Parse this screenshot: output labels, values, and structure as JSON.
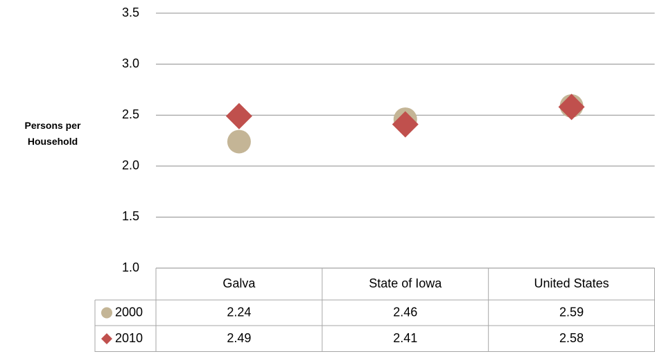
{
  "chart_data": {
    "type": "line",
    "markers_only": true,
    "y_label": "Persons per Household",
    "categories": [
      "Galva",
      "State of Iowa",
      "United States"
    ],
    "series": [
      {
        "name": "2000",
        "color": "#c4b596",
        "marker": "circle",
        "values": [
          2.24,
          2.46,
          2.59
        ]
      },
      {
        "name": "2010",
        "color": "#c0504d",
        "marker": "diamond",
        "values": [
          2.49,
          2.41,
          2.58
        ]
      }
    ],
    "ylim": [
      1.0,
      3.5
    ],
    "yticks": [
      {
        "value": 1.0,
        "label": "1.0"
      },
      1.5,
      {
        "value": 2.0,
        "label": "2.0"
      },
      2.5,
      {
        "value": 3.0,
        "label": "3.0"
      },
      3.5
    ],
    "grid": true,
    "data_table": true
  }
}
